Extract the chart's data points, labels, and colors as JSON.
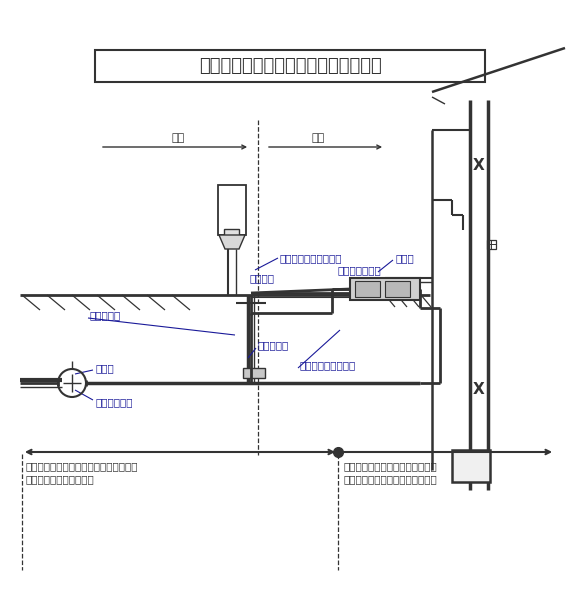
{
  "title": "給水装置における自然漏水の修繕範囲",
  "bg_color": "#ffffff",
  "lc": "#333333",
  "tc": "#1a1a99",
  "title_fs": 13,
  "label_fs": 7.5,
  "labels": {
    "kodou": "公道",
    "takuchi": "宅地",
    "shisuisen_dai1": "止水栓（第１バルブ）",
    "meta": "メータ",
    "shisuisen_chi": "止水栓置",
    "metabox": "メータボックス",
    "bunsuisen_tsugi": "分水栓継手",
    "shisuisen_tsugi": "止水栓継手",
    "meta_hosui": "メータ用補助止水栓",
    "haisukan": "配水管",
    "sadoru": "サドル分水栓",
    "left_range_line1": "水道事務所で修繕することができる範囲",
    "left_range_line2": "（メータボックスまで）",
    "right_range_line1": "所有者／使用者様が修繕する範囲",
    "right_range_line2": "（メータボックスよりも宅地側）"
  }
}
